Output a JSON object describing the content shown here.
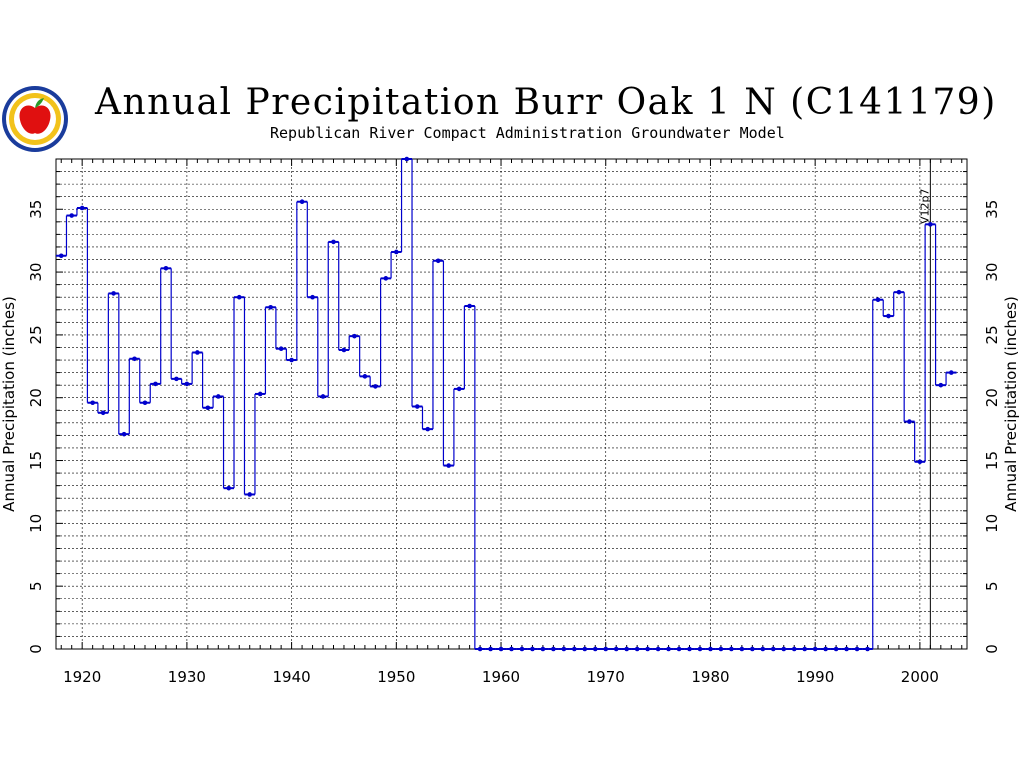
{
  "logo": {
    "icon": "apple-seal-icon",
    "colors": {
      "ring": "#1a3c9c",
      "seal": "#f2c21b",
      "apple": "#e01010",
      "leaf": "#2a9a2a"
    }
  },
  "chart_data": {
    "type": "line",
    "step": true,
    "title": "Annual Precipitation Burr Oak 1 N (C141179)",
    "subtitle": "Republican River Compact Administration Groundwater Model",
    "xlabel": "",
    "ylabel": "Annual Precipitation (inches)",
    "ylabel_right": "Annual Precipitation (inches)",
    "xlim": [
      1917.5,
      2004.5
    ],
    "ylim": [
      0,
      39
    ],
    "x_ticks": [
      "1920",
      "1930",
      "1940",
      "1950",
      "1960",
      "1970",
      "1980",
      "1990",
      "2000"
    ],
    "y_ticks": [
      "0",
      "5",
      "10",
      "15",
      "20",
      "25",
      "30",
      "35"
    ],
    "grid": true,
    "color": "#0000cc",
    "annotation": {
      "x": 2001,
      "text": "V12p7"
    },
    "series": [
      {
        "x": [
          1918,
          1919,
          1920,
          1921,
          1922,
          1923,
          1924,
          1925,
          1926,
          1927,
          1928,
          1929,
          1930,
          1931,
          1932,
          1933,
          1934,
          1935,
          1936,
          1937,
          1938,
          1939,
          1940,
          1941,
          1942,
          1943,
          1944,
          1945,
          1946,
          1947,
          1948,
          1949,
          1950,
          1951,
          1952,
          1953,
          1954,
          1955,
          1956,
          1957,
          1958,
          1959,
          1960,
          1961,
          1962,
          1963,
          1964,
          1965,
          1966,
          1967,
          1968,
          1969,
          1970,
          1971,
          1972,
          1973,
          1974,
          1975,
          1976,
          1977,
          1978,
          1979,
          1980,
          1981,
          1982,
          1983,
          1984,
          1985,
          1986,
          1987,
          1988,
          1989,
          1990,
          1991,
          1992,
          1993,
          1994,
          1995,
          1996,
          1997,
          1998,
          1999,
          2000,
          2001,
          2002,
          2003
        ],
        "values": [
          31.3,
          34.5,
          35.1,
          19.6,
          18.8,
          28.3,
          17.1,
          23.1,
          19.6,
          21.1,
          30.3,
          21.5,
          21.1,
          23.6,
          19.2,
          20.1,
          12.8,
          28.0,
          12.3,
          20.3,
          27.2,
          23.9,
          23.0,
          35.6,
          28.0,
          20.1,
          32.4,
          23.8,
          24.9,
          21.7,
          20.9,
          29.5,
          31.6,
          39.0,
          19.3,
          17.5,
          30.9,
          14.6,
          20.7,
          27.3,
          0,
          0,
          0,
          0,
          0,
          0,
          0,
          0,
          0,
          0,
          0,
          0,
          0,
          0,
          0,
          0,
          0,
          0,
          0,
          0,
          0,
          0,
          0,
          0,
          0,
          0,
          0,
          0,
          0,
          0,
          0,
          0,
          0,
          0,
          0,
          0,
          0,
          0,
          27.8,
          26.5,
          28.4,
          18.1,
          14.9,
          33.8,
          21.0,
          22.0
        ]
      }
    ]
  }
}
